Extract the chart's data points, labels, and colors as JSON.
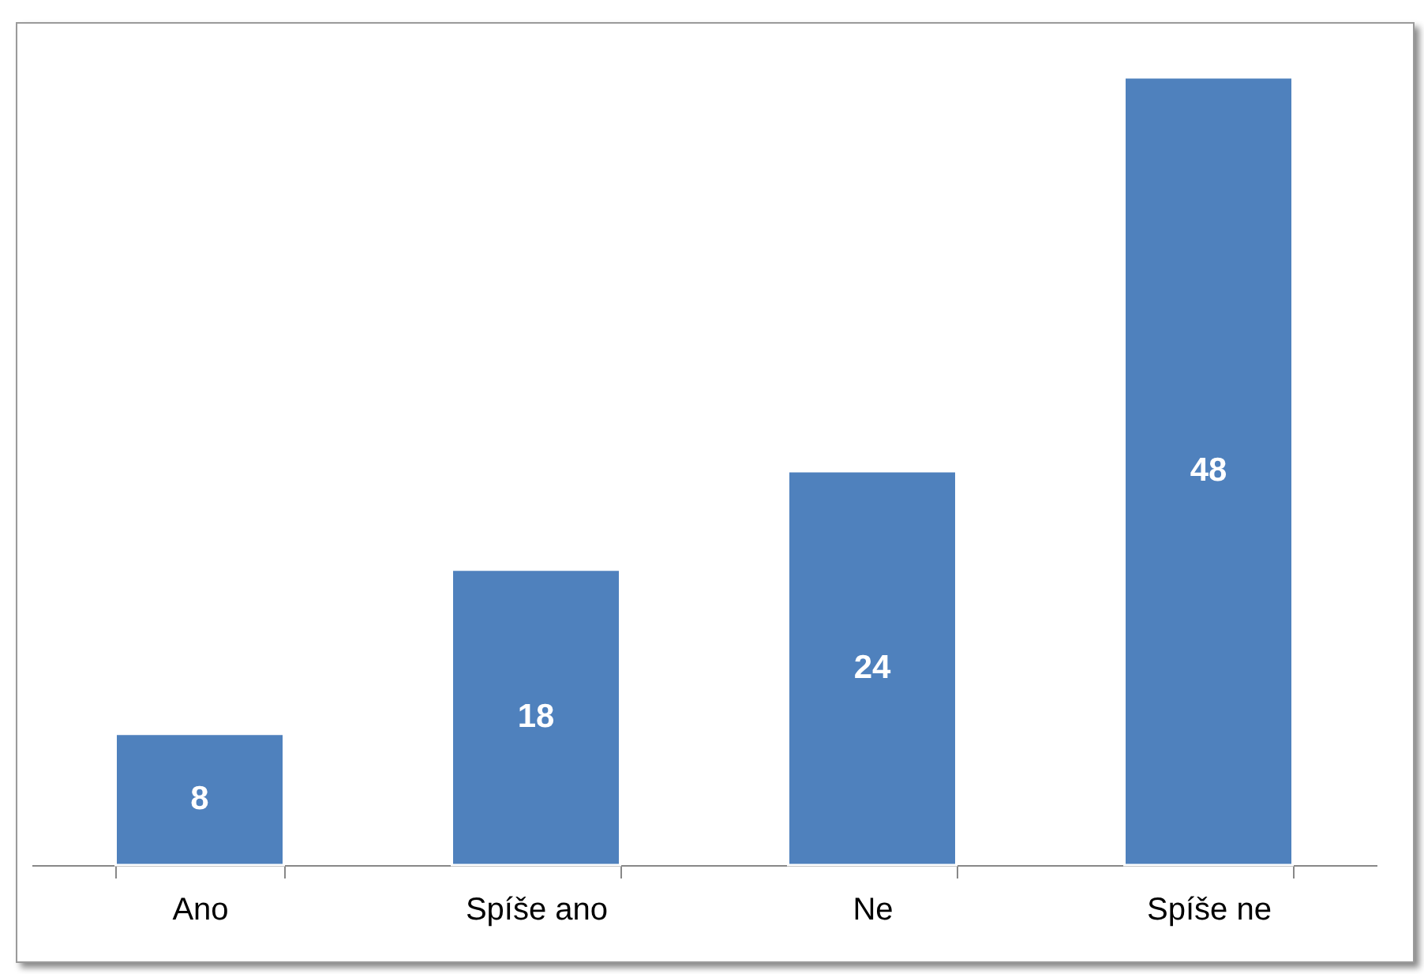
{
  "chart_data": {
    "type": "bar",
    "categories": [
      "Ano",
      "Spíše ano",
      "Ne",
      "Spíše ne"
    ],
    "values": [
      8,
      18,
      24,
      48
    ],
    "color": "#4f81bd",
    "data_labels": true
  }
}
